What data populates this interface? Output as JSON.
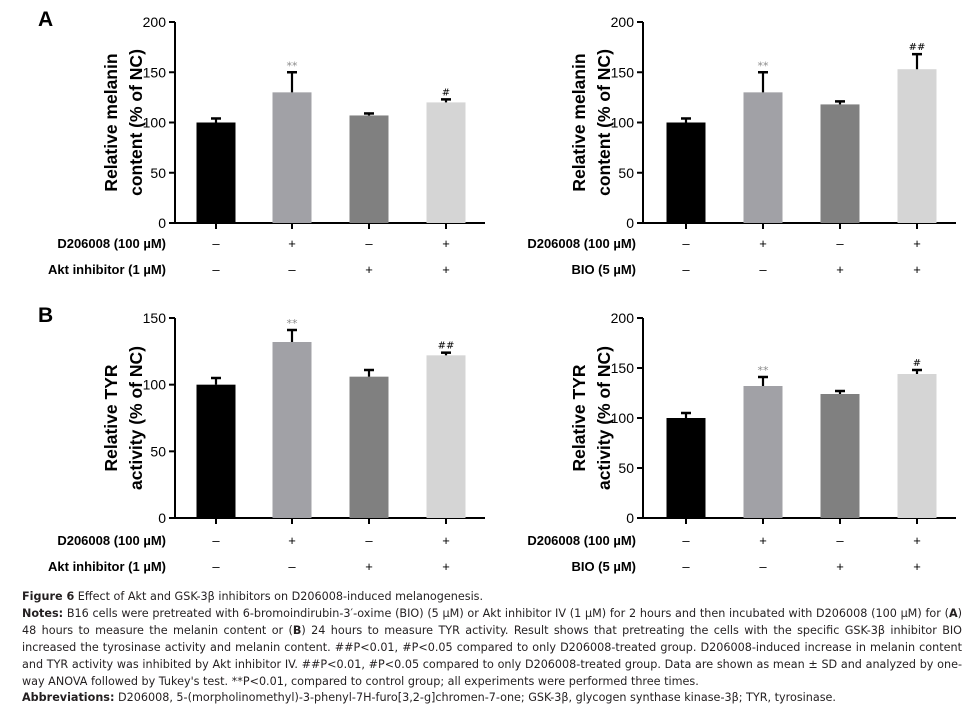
{
  "chart_data": [
    {
      "type": "bar",
      "panel": "A",
      "panel_label": "A",
      "position": "top-left",
      "ylabel_lines": [
        "Relative melanin",
        "content (% of NC)"
      ],
      "ylim": [
        0,
        200
      ],
      "yticks": [
        0,
        50,
        100,
        150,
        200
      ],
      "values": [
        100,
        130,
        107,
        120
      ],
      "errors": [
        4,
        20,
        2,
        3
      ],
      "annotations": [
        "",
        "**",
        "",
        "#"
      ],
      "colors": [
        "#000000",
        "#a1a1a6",
        "#808080",
        "#d5d5d5"
      ],
      "rows": [
        {
          "label": "D206008 (100 µM)",
          "values": [
            "–",
            "+",
            "–",
            "+"
          ]
        },
        {
          "label": "Akt inhibitor (1 µM)",
          "values": [
            "–",
            "–",
            "+",
            "+"
          ]
        }
      ]
    },
    {
      "type": "bar",
      "panel": "A",
      "panel_label": "",
      "position": "top-right",
      "ylabel_lines": [
        "Relative melanin",
        "content (% of NC)"
      ],
      "ylim": [
        0,
        200
      ],
      "yticks": [
        0,
        50,
        100,
        150,
        200
      ],
      "values": [
        100,
        130,
        118,
        153
      ],
      "errors": [
        4,
        20,
        3,
        15
      ],
      "annotations": [
        "",
        "**",
        "",
        "##"
      ],
      "colors": [
        "#000000",
        "#a1a1a6",
        "#808080",
        "#d5d5d5"
      ],
      "rows": [
        {
          "label": "D206008 (100 µM)",
          "values": [
            "–",
            "+",
            "–",
            "+"
          ]
        },
        {
          "label": "BIO (5 µM)",
          "values": [
            "–",
            "–",
            "+",
            "+"
          ]
        }
      ]
    },
    {
      "type": "bar",
      "panel": "B",
      "panel_label": "B",
      "position": "bottom-left",
      "ylabel_lines": [
        "Relative TYR",
        "activity (% of NC)"
      ],
      "ylim": [
        0,
        150
      ],
      "yticks": [
        0,
        50,
        100,
        150
      ],
      "values": [
        100,
        132,
        106,
        122
      ],
      "errors": [
        5,
        9,
        5,
        2
      ],
      "annotations": [
        "",
        "**",
        "",
        "##"
      ],
      "colors": [
        "#000000",
        "#a1a1a6",
        "#808080",
        "#d5d5d5"
      ],
      "rows": [
        {
          "label": "D206008 (100 µM)",
          "values": [
            "–",
            "+",
            "–",
            "+"
          ]
        },
        {
          "label": "Akt inhibitor (1 µM)",
          "values": [
            "–",
            "–",
            "+",
            "+"
          ]
        }
      ]
    },
    {
      "type": "bar",
      "panel": "B",
      "panel_label": "",
      "position": "bottom-right",
      "ylabel_lines": [
        "Relative TYR",
        "activity (% of NC)"
      ],
      "ylim": [
        0,
        200
      ],
      "yticks": [
        0,
        50,
        100,
        150,
        200
      ],
      "values": [
        100,
        132,
        124,
        144
      ],
      "errors": [
        5,
        9,
        3,
        4
      ],
      "annotations": [
        "",
        "**",
        "",
        "#"
      ],
      "colors": [
        "#000000",
        "#a1a1a6",
        "#808080",
        "#d5d5d5"
      ],
      "rows": [
        {
          "label": "D206008 (100 µM)",
          "values": [
            "–",
            "+",
            "–",
            "+"
          ]
        },
        {
          "label": "BIO (5 µM)",
          "values": [
            "–",
            "–",
            "+",
            "+"
          ]
        }
      ]
    }
  ],
  "caption": {
    "figure_label": "Figure 6",
    "figure_title": " Effect of Akt and GSK-3β inhibitors on D206008-induced melanogenesis.",
    "notes_label": "Notes:",
    "notes_part1": " B16 cells were pretreated with 6-bromoindirubin-3′-oxime (BIO) (5 µM) or Akt inhibitor IV (1 µM) for 2 hours and then incubated with D206008 (100 µM) for (",
    "notes_A": "A",
    "notes_part2": ") 48 hours to measure the melanin content or (",
    "notes_B": "B",
    "notes_part3": ") 24 hours to measure TYR activity. Result shows that pretreating the cells with the specific GSK-3β inhibitor BIO increased the tyrosinase activity and melanin content. ##P<0.01, #P<0.05 compared to only D206008-treated group. D206008-induced increase in melanin content and TYR activity was inhibited by Akt inhibitor IV. ##P<0.01, #P<0.05 compared to only D206008-treated group. Data are shown as mean ± SD and analyzed by one-way ANOVA followed by Tukey's test. **P<0.01, compared to control group; all experiments were performed three times.",
    "abbrev_label": "Abbreviations:",
    "abbrev_text": " D206008, 5-(morpholinomethyl)-3-phenyl-7H-furo[3,2-g]chromen-7-one; GSK-3β, glycogen synthase kinase-3β; TYR, tyrosinase."
  }
}
